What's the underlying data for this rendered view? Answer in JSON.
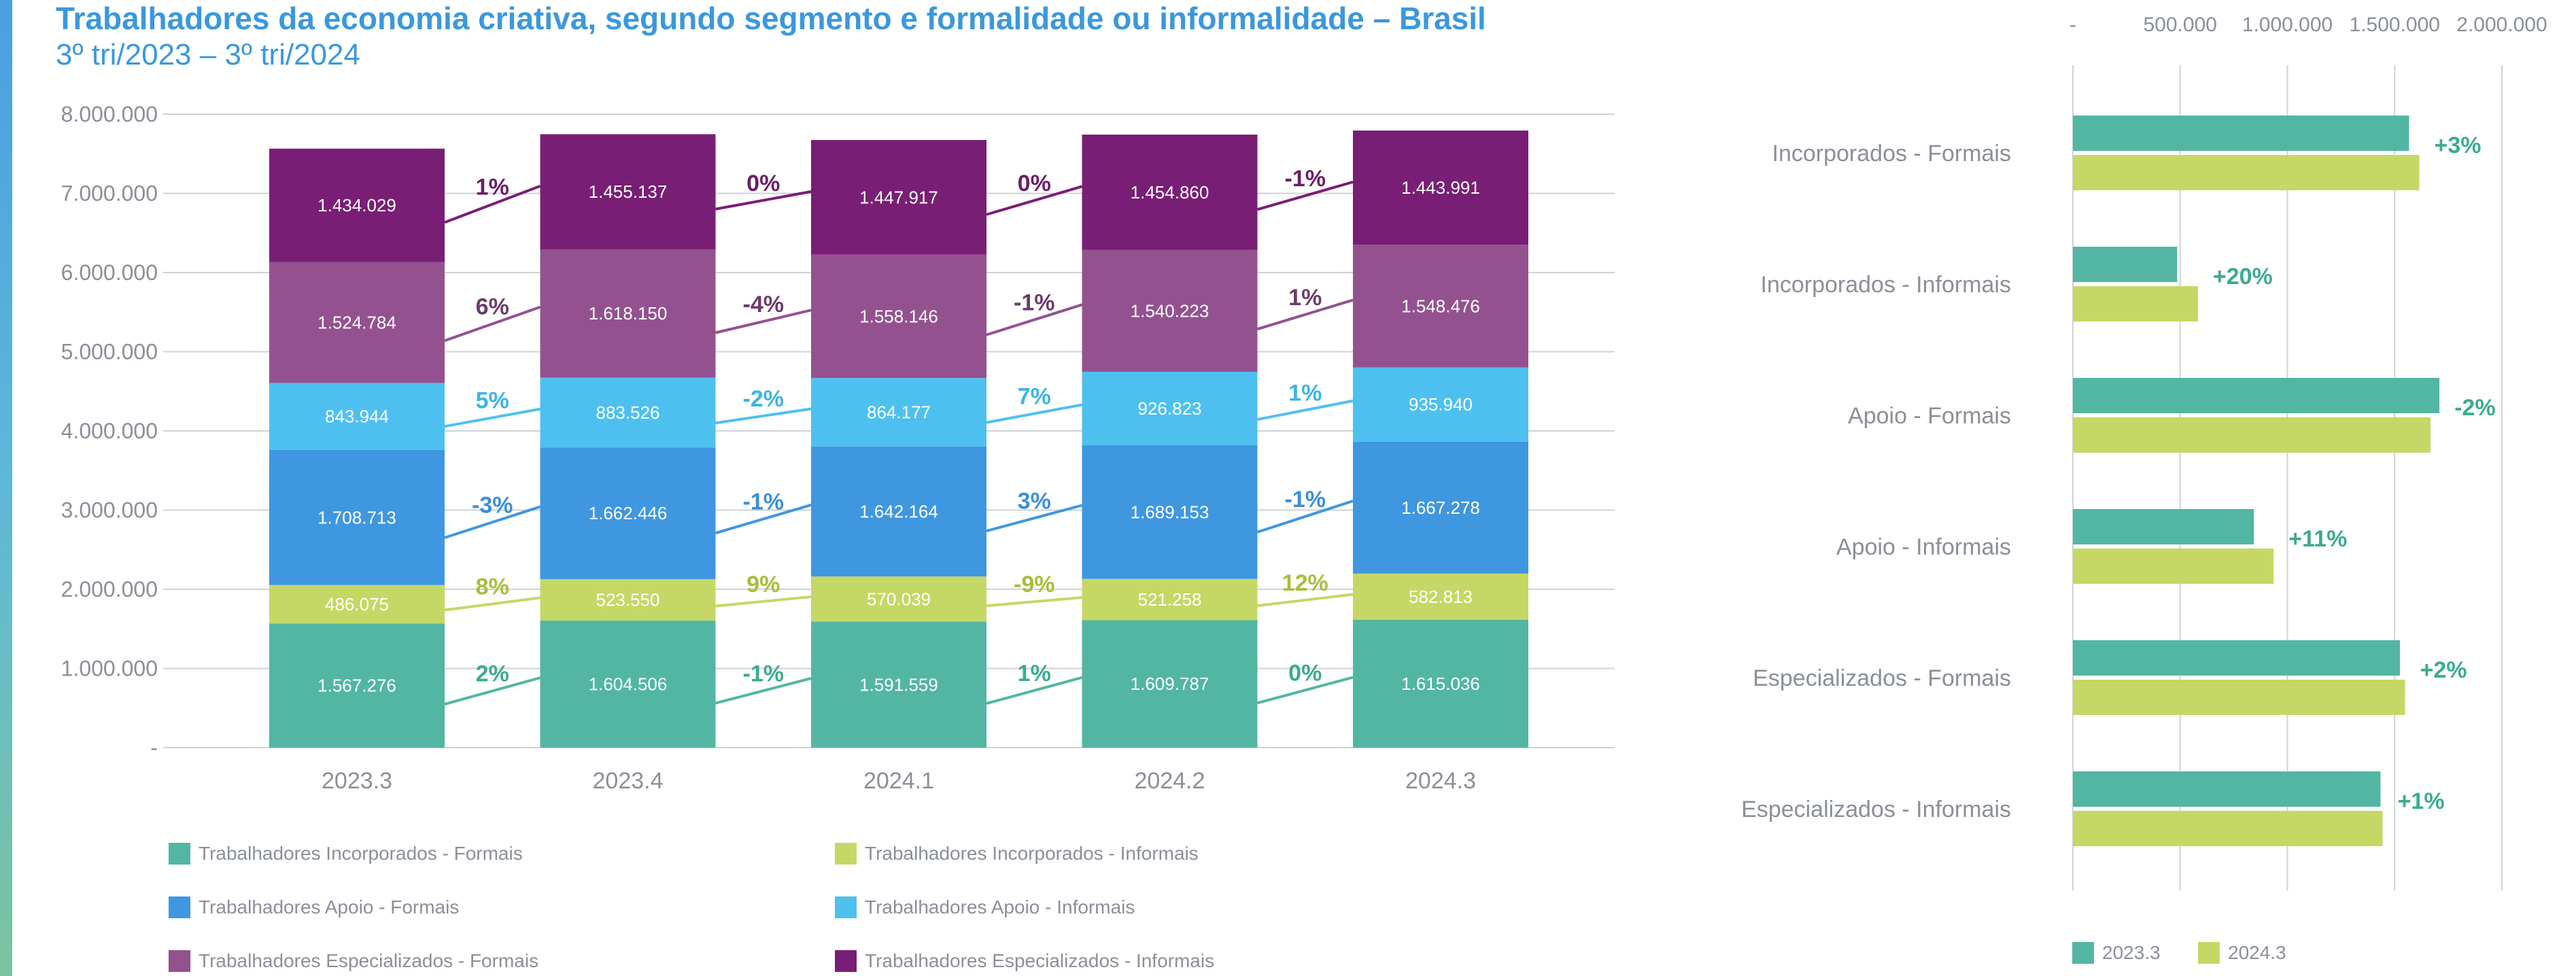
{
  "title": "Trabalhadores da economia criativa, segundo segmento e formalidade ou informalidade – Brasil",
  "subtitle": "3º tri/2023 – 3º tri/2024",
  "chart_data": [
    {
      "type": "bar",
      "stacked": true,
      "categories": [
        "2023.3",
        "2023.4",
        "2024.1",
        "2024.2",
        "2024.3"
      ],
      "ylim": [
        0,
        8000000
      ],
      "yticks": [
        "-",
        "1.000.000",
        "2.000.000",
        "3.000.000",
        "4.000.000",
        "5.000.000",
        "6.000.000",
        "7.000.000",
        "8.000.000"
      ],
      "grid": true,
      "legend_position": "bottom",
      "series": [
        {
          "name": "Trabalhadores Incorporados - Formais",
          "color": "#52b6a3",
          "values": [
            1567276,
            1604506,
            1591559,
            1609787,
            1615036
          ],
          "labels": [
            "1.567.276",
            "1.604.506",
            "1.591.559",
            "1.609.787",
            "1.615.036"
          ],
          "changes": [
            "2%",
            "-1%",
            "1%",
            "0%"
          ]
        },
        {
          "name": "Trabalhadores Incorporados - Informais",
          "color": "#c5d865",
          "values": [
            486075,
            523550,
            570039,
            521258,
            582813
          ],
          "labels": [
            "486.075",
            "523.550",
            "570.039",
            "521.258",
            "582.813"
          ],
          "changes": [
            "8%",
            "9%",
            "-9%",
            "12%"
          ]
        },
        {
          "name": "Trabalhadores Apoio - Formais",
          "color": "#3f97e0",
          "values": [
            1708713,
            1662446,
            1642164,
            1689153,
            1667278
          ],
          "labels": [
            "1.708.713",
            "1.662.446",
            "1.642.164",
            "1.689.153",
            "1.667.278"
          ],
          "changes": [
            "-3%",
            "-1%",
            "3%",
            "-1%"
          ]
        },
        {
          "name": "Trabalhadores Apoio - Informais",
          "color": "#4ec0f0",
          "values": [
            843944,
            883526,
            864177,
            926823,
            935940
          ],
          "labels": [
            "843.944",
            "883.526",
            "864.177",
            "926.823",
            "935.940"
          ],
          "changes": [
            "5%",
            "-2%",
            "7%",
            "1%"
          ]
        },
        {
          "name": "Trabalhadores Especializados - Formais",
          "color": "#93528f",
          "values": [
            1524784,
            1618150,
            1558146,
            1540223,
            1548476
          ],
          "labels": [
            "1.524.784",
            "1.618.150",
            "1.558.146",
            "1.540.223",
            "1.548.476"
          ],
          "changes": [
            "6%",
            "-4%",
            "-1%",
            "1%"
          ]
        },
        {
          "name": "Trabalhadores Especializados - Informais",
          "color": "#791e75",
          "values": [
            1434029,
            1455137,
            1447917,
            1454860,
            1443991
          ],
          "labels": [
            "1.434.029",
            "1.455.137",
            "1.447.917",
            "1.454.860",
            "1.443.991"
          ],
          "changes": [
            "1%",
            "0%",
            "0%",
            "-1%"
          ]
        }
      ]
    },
    {
      "type": "bar",
      "orientation": "horizontal",
      "categories": [
        "Incorporados - Formais",
        "Incorporados - Informais",
        "Apoio - Formais",
        "Apoio - Informais",
        "Especializados - Formais",
        "Especializados - Informais"
      ],
      "xlim": [
        0,
        2000000
      ],
      "xticks": [
        "-",
        "500.000",
        "1.000.000",
        "1.500.000",
        "2.000.000"
      ],
      "grid": true,
      "legend_position": "bottom",
      "series": [
        {
          "name": "2023.3",
          "color": "#52b6a3",
          "values": [
            1567276,
            486075,
            1708713,
            843944,
            1524784,
            1434029
          ]
        },
        {
          "name": "2024.3",
          "color": "#c5d865",
          "values": [
            1615036,
            582813,
            1667278,
            935940,
            1548476,
            1443991
          ]
        }
      ],
      "changes": [
        "+3%",
        "+20%",
        "-2%",
        "+11%",
        "+2%",
        "+1%"
      ],
      "change_color": "#3cab91"
    }
  ]
}
